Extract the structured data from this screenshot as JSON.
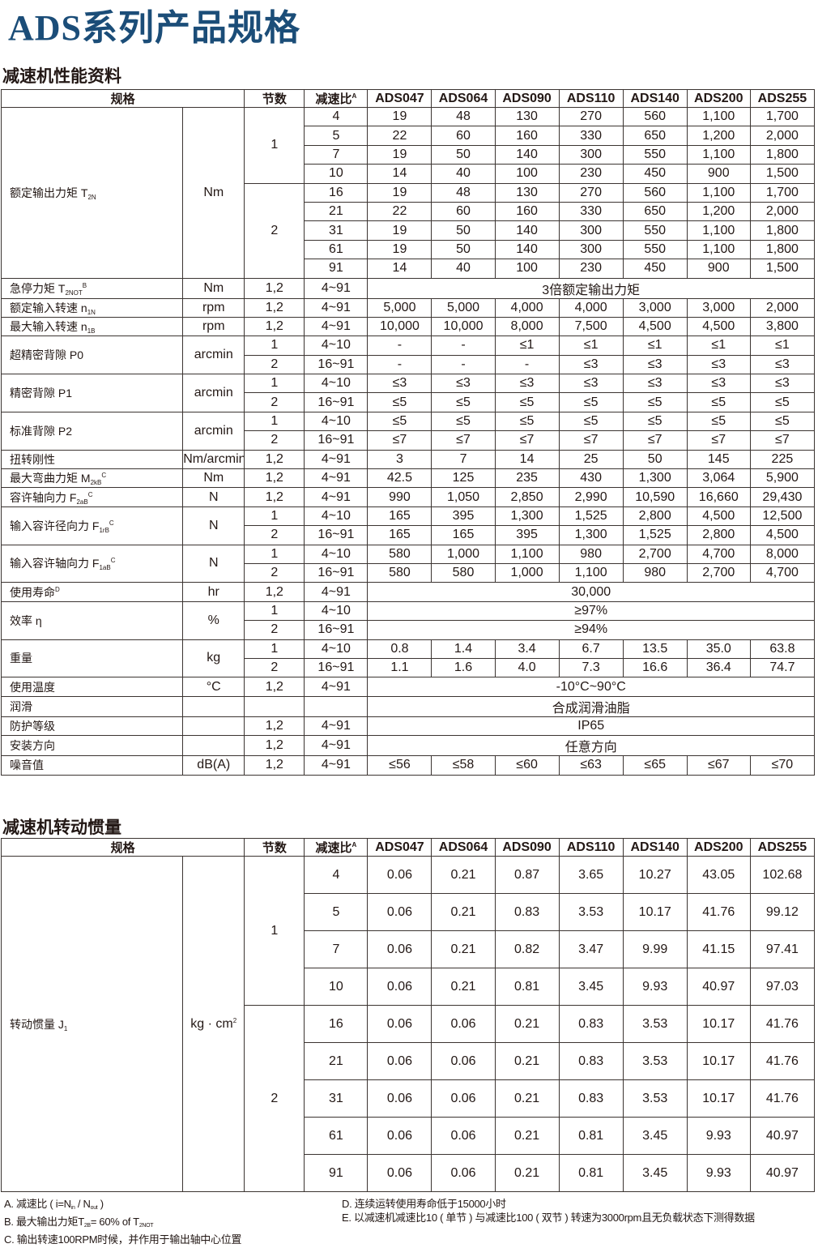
{
  "title": "ADS系列产品规格",
  "performance": {
    "heading": "减速机性能资料",
    "header": {
      "spec": "规格",
      "stage": "节数",
      "ratio": "减速比",
      "ratio_sup": "A",
      "models": [
        "ADS047",
        "ADS064",
        "ADS090",
        "ADS110",
        "ADS140",
        "ADS200",
        "ADS255"
      ]
    },
    "rows": [
      {
        "label": "额定输出力矩 T",
        "sub": "2N",
        "sup": "",
        "unit": "Nm",
        "stages": [
          {
            "stage": "1",
            "ratios": [
              {
                "ratio": "4",
                "values": [
                  "19",
                  "48",
                  "130",
                  "270",
                  "560",
                  "1,100",
                  "1,700"
                ]
              },
              {
                "ratio": "5",
                "values": [
                  "22",
                  "60",
                  "160",
                  "330",
                  "650",
                  "1,200",
                  "2,000"
                ]
              },
              {
                "ratio": "7",
                "values": [
                  "19",
                  "50",
                  "140",
                  "300",
                  "550",
                  "1,100",
                  "1,800"
                ]
              },
              {
                "ratio": "10",
                "values": [
                  "14",
                  "40",
                  "100",
                  "230",
                  "450",
                  "900",
                  "1,500"
                ]
              }
            ]
          },
          {
            "stage": "2",
            "ratios": [
              {
                "ratio": "16",
                "values": [
                  "19",
                  "48",
                  "130",
                  "270",
                  "560",
                  "1,100",
                  "1,700"
                ]
              },
              {
                "ratio": "21",
                "values": [
                  "22",
                  "60",
                  "160",
                  "330",
                  "650",
                  "1,200",
                  "2,000"
                ]
              },
              {
                "ratio": "31",
                "values": [
                  "19",
                  "50",
                  "140",
                  "300",
                  "550",
                  "1,100",
                  "1,800"
                ]
              },
              {
                "ratio": "61",
                "values": [
                  "19",
                  "50",
                  "140",
                  "300",
                  "550",
                  "1,100",
                  "1,800"
                ]
              },
              {
                "ratio": "91",
                "values": [
                  "14",
                  "40",
                  "100",
                  "230",
                  "450",
                  "900",
                  "1,500"
                ]
              }
            ]
          }
        ]
      },
      {
        "label": "急停力矩 T",
        "sub": "2NOT",
        "sup": "B",
        "unit": "Nm",
        "stages": [
          {
            "stage": "1,2",
            "ratios": [
              {
                "ratio": "4~91",
                "merged": "3倍额定输出力矩"
              }
            ]
          }
        ]
      },
      {
        "label": "额定输入转速 n",
        "sub": "1N",
        "sup": "",
        "unit": "rpm",
        "stages": [
          {
            "stage": "1,2",
            "ratios": [
              {
                "ratio": "4~91",
                "values": [
                  "5,000",
                  "5,000",
                  "4,000",
                  "4,000",
                  "3,000",
                  "3,000",
                  "2,000"
                ]
              }
            ]
          }
        ]
      },
      {
        "label": "最大输入转速 n",
        "sub": "1B",
        "sup": "",
        "unit": "rpm",
        "stages": [
          {
            "stage": "1,2",
            "ratios": [
              {
                "ratio": "4~91",
                "values": [
                  "10,000",
                  "10,000",
                  "8,000",
                  "7,500",
                  "4,500",
                  "4,500",
                  "3,800"
                ]
              }
            ]
          }
        ]
      },
      {
        "label": "超精密背隙 P0",
        "sub": "",
        "sup": "",
        "unit": "arcmin",
        "stages": [
          {
            "stage": "1",
            "ratios": [
              {
                "ratio": "4~10",
                "values": [
                  "-",
                  "-",
                  "≤1",
                  "≤1",
                  "≤1",
                  "≤1",
                  "≤1"
                ]
              }
            ]
          },
          {
            "stage": "2",
            "ratios": [
              {
                "ratio": "16~91",
                "values": [
                  "-",
                  "-",
                  "-",
                  "≤3",
                  "≤3",
                  "≤3",
                  "≤3"
                ]
              }
            ]
          }
        ]
      },
      {
        "label": "精密背隙 P1",
        "sub": "",
        "sup": "",
        "unit": "arcmin",
        "stages": [
          {
            "stage": "1",
            "ratios": [
              {
                "ratio": "4~10",
                "values": [
                  "≤3",
                  "≤3",
                  "≤3",
                  "≤3",
                  "≤3",
                  "≤3",
                  "≤3"
                ]
              }
            ]
          },
          {
            "stage": "2",
            "ratios": [
              {
                "ratio": "16~91",
                "values": [
                  "≤5",
                  "≤5",
                  "≤5",
                  "≤5",
                  "≤5",
                  "≤5",
                  "≤5"
                ]
              }
            ]
          }
        ]
      },
      {
        "label": "标准背隙 P2",
        "sub": "",
        "sup": "",
        "unit": "arcmin",
        "stages": [
          {
            "stage": "1",
            "ratios": [
              {
                "ratio": "4~10",
                "values": [
                  "≤5",
                  "≤5",
                  "≤5",
                  "≤5",
                  "≤5",
                  "≤5",
                  "≤5"
                ]
              }
            ]
          },
          {
            "stage": "2",
            "ratios": [
              {
                "ratio": "16~91",
                "values": [
                  "≤7",
                  "≤7",
                  "≤7",
                  "≤7",
                  "≤7",
                  "≤7",
                  "≤7"
                ]
              }
            ]
          }
        ]
      },
      {
        "label": "扭转刚性",
        "sub": "",
        "sup": "",
        "unit": "Nm/arcmin",
        "stages": [
          {
            "stage": "1,2",
            "ratios": [
              {
                "ratio": "4~91",
                "values": [
                  "3",
                  "7",
                  "14",
                  "25",
                  "50",
                  "145",
                  "225"
                ]
              }
            ]
          }
        ]
      },
      {
        "label": "最大弯曲力矩 M",
        "sub": "2kB",
        "sup": "C",
        "unit": "Nm",
        "stages": [
          {
            "stage": "1,2",
            "ratios": [
              {
                "ratio": "4~91",
                "values": [
                  "42.5",
                  "125",
                  "235",
                  "430",
                  "1,300",
                  "3,064",
                  "5,900"
                ]
              }
            ]
          }
        ]
      },
      {
        "label": "容许轴向力 F",
        "sub": "2aB",
        "sup": "C",
        "unit": "N",
        "stages": [
          {
            "stage": "1,2",
            "ratios": [
              {
                "ratio": "4~91",
                "values": [
                  "990",
                  "1,050",
                  "2,850",
                  "2,990",
                  "10,590",
                  "16,660",
                  "29,430"
                ]
              }
            ]
          }
        ]
      },
      {
        "label": "输入容许径向力 F",
        "sub": "1rB",
        "sup": "C",
        "unit": "N",
        "stages": [
          {
            "stage": "1",
            "ratios": [
              {
                "ratio": "4~10",
                "values": [
                  "165",
                  "395",
                  "1,300",
                  "1,525",
                  "2,800",
                  "4,500",
                  "12,500"
                ]
              }
            ]
          },
          {
            "stage": "2",
            "ratios": [
              {
                "ratio": "16~91",
                "values": [
                  "165",
                  "165",
                  "395",
                  "1,300",
                  "1,525",
                  "2,800",
                  "4,500"
                ]
              }
            ]
          }
        ]
      },
      {
        "label": "输入容许轴向力 F",
        "sub": "1aB",
        "sup": "C",
        "unit": "N",
        "stages": [
          {
            "stage": "1",
            "ratios": [
              {
                "ratio": "4~10",
                "values": [
                  "580",
                  "1,000",
                  "1,100",
                  "980",
                  "2,700",
                  "4,700",
                  "8,000"
                ]
              }
            ]
          },
          {
            "stage": "2",
            "ratios": [
              {
                "ratio": "16~91",
                "values": [
                  "580",
                  "580",
                  "1,000",
                  "1,100",
                  "980",
                  "2,700",
                  "4,700"
                ]
              }
            ]
          }
        ]
      },
      {
        "label": "使用寿命",
        "sub": "",
        "sup": "D",
        "unit": "hr",
        "stages": [
          {
            "stage": "1,2",
            "ratios": [
              {
                "ratio": "4~91",
                "merged": "30,000"
              }
            ]
          }
        ]
      },
      {
        "label": "效率 η",
        "sub": "",
        "sup": "",
        "unit": "%",
        "stages": [
          {
            "stage": "1",
            "ratios": [
              {
                "ratio": "4~10",
                "merged": "≥97%"
              }
            ]
          },
          {
            "stage": "2",
            "ratios": [
              {
                "ratio": "16~91",
                "merged": "≥94%"
              }
            ]
          }
        ]
      },
      {
        "label": "重量",
        "sub": "",
        "sup": "",
        "unit": "kg",
        "stages": [
          {
            "stage": "1",
            "ratios": [
              {
                "ratio": "4~10",
                "values": [
                  "0.8",
                  "1.4",
                  "3.4",
                  "6.7",
                  "13.5",
                  "35.0",
                  "63.8"
                ]
              }
            ]
          },
          {
            "stage": "2",
            "ratios": [
              {
                "ratio": "16~91",
                "values": [
                  "1.1",
                  "1.6",
                  "4.0",
                  "7.3",
                  "16.6",
                  "36.4",
                  "74.7"
                ]
              }
            ]
          }
        ]
      },
      {
        "label": "使用温度",
        "sub": "",
        "sup": "",
        "unit": "°C",
        "stages": [
          {
            "stage": "1,2",
            "ratios": [
              {
                "ratio": "4~91",
                "merged": "-10°C~90°C"
              }
            ]
          }
        ]
      },
      {
        "label": "润滑",
        "sub": "",
        "sup": "",
        "unit": "",
        "stages": [
          {
            "stage": "",
            "ratios": [
              {
                "ratio": "",
                "merged": "合成润滑油脂"
              }
            ]
          }
        ]
      },
      {
        "label": "防护等级",
        "sub": "",
        "sup": "",
        "unit": "",
        "stages": [
          {
            "stage": "1,2",
            "ratios": [
              {
                "ratio": "4~91",
                "merged": "IP65"
              }
            ]
          }
        ]
      },
      {
        "label": "安装方向",
        "sub": "",
        "sup": "",
        "unit": "",
        "stages": [
          {
            "stage": "1,2",
            "ratios": [
              {
                "ratio": "4~91",
                "merged": "任意方向"
              }
            ]
          }
        ]
      },
      {
        "label": "噪音值",
        "sub": "",
        "sup": "",
        "unit": "dB(A)",
        "stages": [
          {
            "stage": "1,2",
            "ratios": [
              {
                "ratio": "4~91",
                "values": [
                  "≤56",
                  "≤58",
                  "≤60",
                  "≤63",
                  "≤65",
                  "≤67",
                  "≤70"
                ]
              }
            ]
          }
        ]
      }
    ]
  },
  "inertia": {
    "heading": "减速机转动惯量",
    "header": {
      "spec": "规格",
      "stage": "节数",
      "ratio": "减速比",
      "ratio_sup": "A",
      "models": [
        "ADS047",
        "ADS064",
        "ADS090",
        "ADS110",
        "ADS140",
        "ADS200",
        "ADS255"
      ]
    },
    "rows": [
      {
        "label": "转动惯量 J",
        "sub": "1",
        "sup": "",
        "unit": "kg · cm",
        "unit_sup": "2",
        "stages": [
          {
            "stage": "1",
            "ratios": [
              {
                "ratio": "4",
                "values": [
                  "0.06",
                  "0.21",
                  "0.87",
                  "3.65",
                  "10.27",
                  "43.05",
                  "102.68"
                ]
              },
              {
                "ratio": "5",
                "values": [
                  "0.06",
                  "0.21",
                  "0.83",
                  "3.53",
                  "10.17",
                  "41.76",
                  "99.12"
                ]
              },
              {
                "ratio": "7",
                "values": [
                  "0.06",
                  "0.21",
                  "0.82",
                  "3.47",
                  "9.99",
                  "41.15",
                  "97.41"
                ]
              },
              {
                "ratio": "10",
                "values": [
                  "0.06",
                  "0.21",
                  "0.81",
                  "3.45",
                  "9.93",
                  "40.97",
                  "97.03"
                ]
              }
            ]
          },
          {
            "stage": "2",
            "ratios": [
              {
                "ratio": "16",
                "values": [
                  "0.06",
                  "0.06",
                  "0.21",
                  "0.83",
                  "3.53",
                  "10.17",
                  "41.76"
                ]
              },
              {
                "ratio": "21",
                "values": [
                  "0.06",
                  "0.06",
                  "0.21",
                  "0.83",
                  "3.53",
                  "10.17",
                  "41.76"
                ]
              },
              {
                "ratio": "31",
                "values": [
                  "0.06",
                  "0.06",
                  "0.21",
                  "0.83",
                  "3.53",
                  "10.17",
                  "41.76"
                ]
              },
              {
                "ratio": "61",
                "values": [
                  "0.06",
                  "0.06",
                  "0.21",
                  "0.81",
                  "3.45",
                  "9.93",
                  "40.97"
                ]
              },
              {
                "ratio": "91",
                "values": [
                  "0.06",
                  "0.06",
                  "0.21",
                  "0.81",
                  "3.45",
                  "9.93",
                  "40.97"
                ]
              }
            ]
          }
        ]
      }
    ]
  },
  "footnotes": {
    "left": [
      [
        {
          "t": "A. 减速比 ( i=N"
        },
        {
          "sub": "in"
        },
        {
          "t": " / N"
        },
        {
          "sub": "out"
        },
        {
          "t": " )"
        }
      ],
      [
        {
          "t": "B. 最大输出力矩T"
        },
        {
          "sub": "2B"
        },
        {
          "t": "= 60% of T"
        },
        {
          "sub": "2NOT"
        }
      ],
      [
        {
          "t": "C. 输出转速100RPM时候，并作用于输出轴中心位置"
        }
      ]
    ],
    "right": [
      [
        {
          "t": "D. 连续运转使用寿命低于15000小时"
        }
      ],
      [
        {
          "t": "E. 以减速机减速比10 ( 单节 ) 与减速比100 ( 双节 ) 转速为3000rpm且无负载状态下测得数据"
        }
      ]
    ]
  }
}
